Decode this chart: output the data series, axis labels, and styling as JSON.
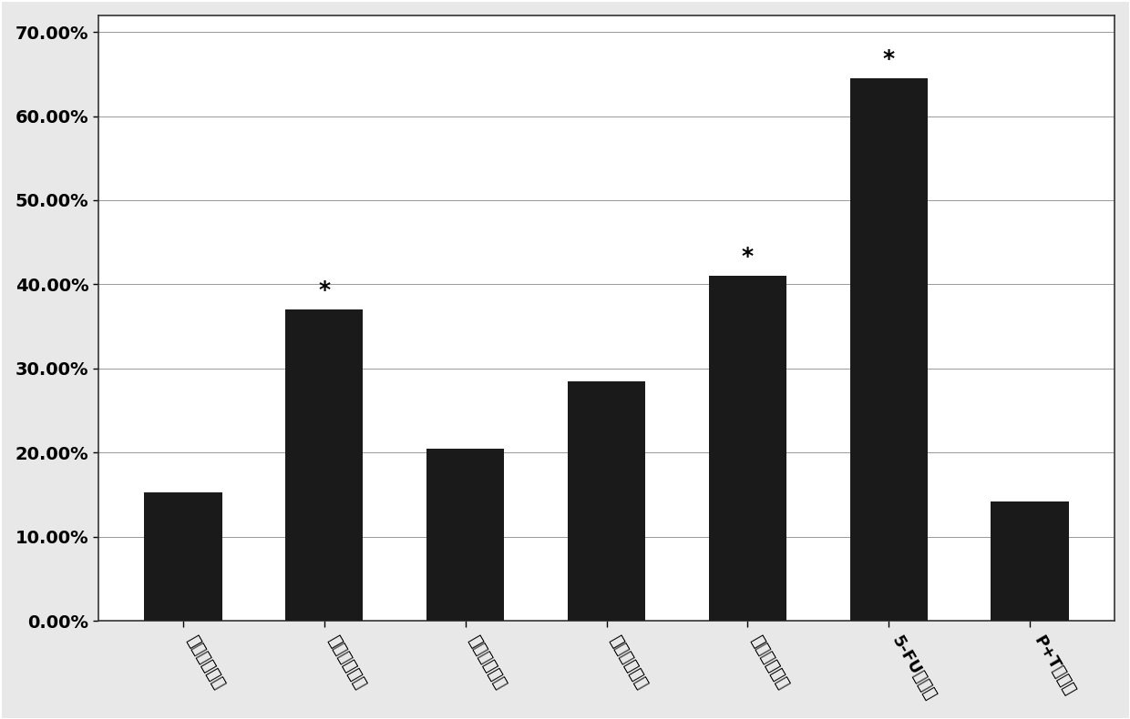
{
  "categories": [
    "水煎剂溶剂组",
    "生物碱溶剂组",
    "生物碱胶腔组",
    "乌头碱溶剂组",
    "乌头碱胶腔组",
    "5-FU胶腔组",
    "P+T胶腔组"
  ],
  "values": [
    0.153,
    0.37,
    0.205,
    0.285,
    0.41,
    0.645,
    0.142
  ],
  "star_flags": [
    false,
    true,
    false,
    false,
    true,
    true,
    false
  ],
  "bar_color": "#1a1a1a",
  "yticks": [
    0.0,
    0.1,
    0.2,
    0.3,
    0.4,
    0.5,
    0.6,
    0.7
  ],
  "ytick_labels": [
    "0.00%",
    "10.00%",
    "20.00%",
    "30.00%",
    "40.00%",
    "50.00%",
    "60.00%",
    "70.00%"
  ],
  "ylim": [
    0,
    0.72
  ],
  "background_color": "#ffffff",
  "grid_color": "#999999",
  "bar_width": 0.55,
  "tick_fontsize": 14,
  "xtick_fontsize": 13,
  "star_fontsize": 18,
  "xrotation": -60,
  "figsize": [
    12.4,
    7.9
  ],
  "dpi": 100
}
